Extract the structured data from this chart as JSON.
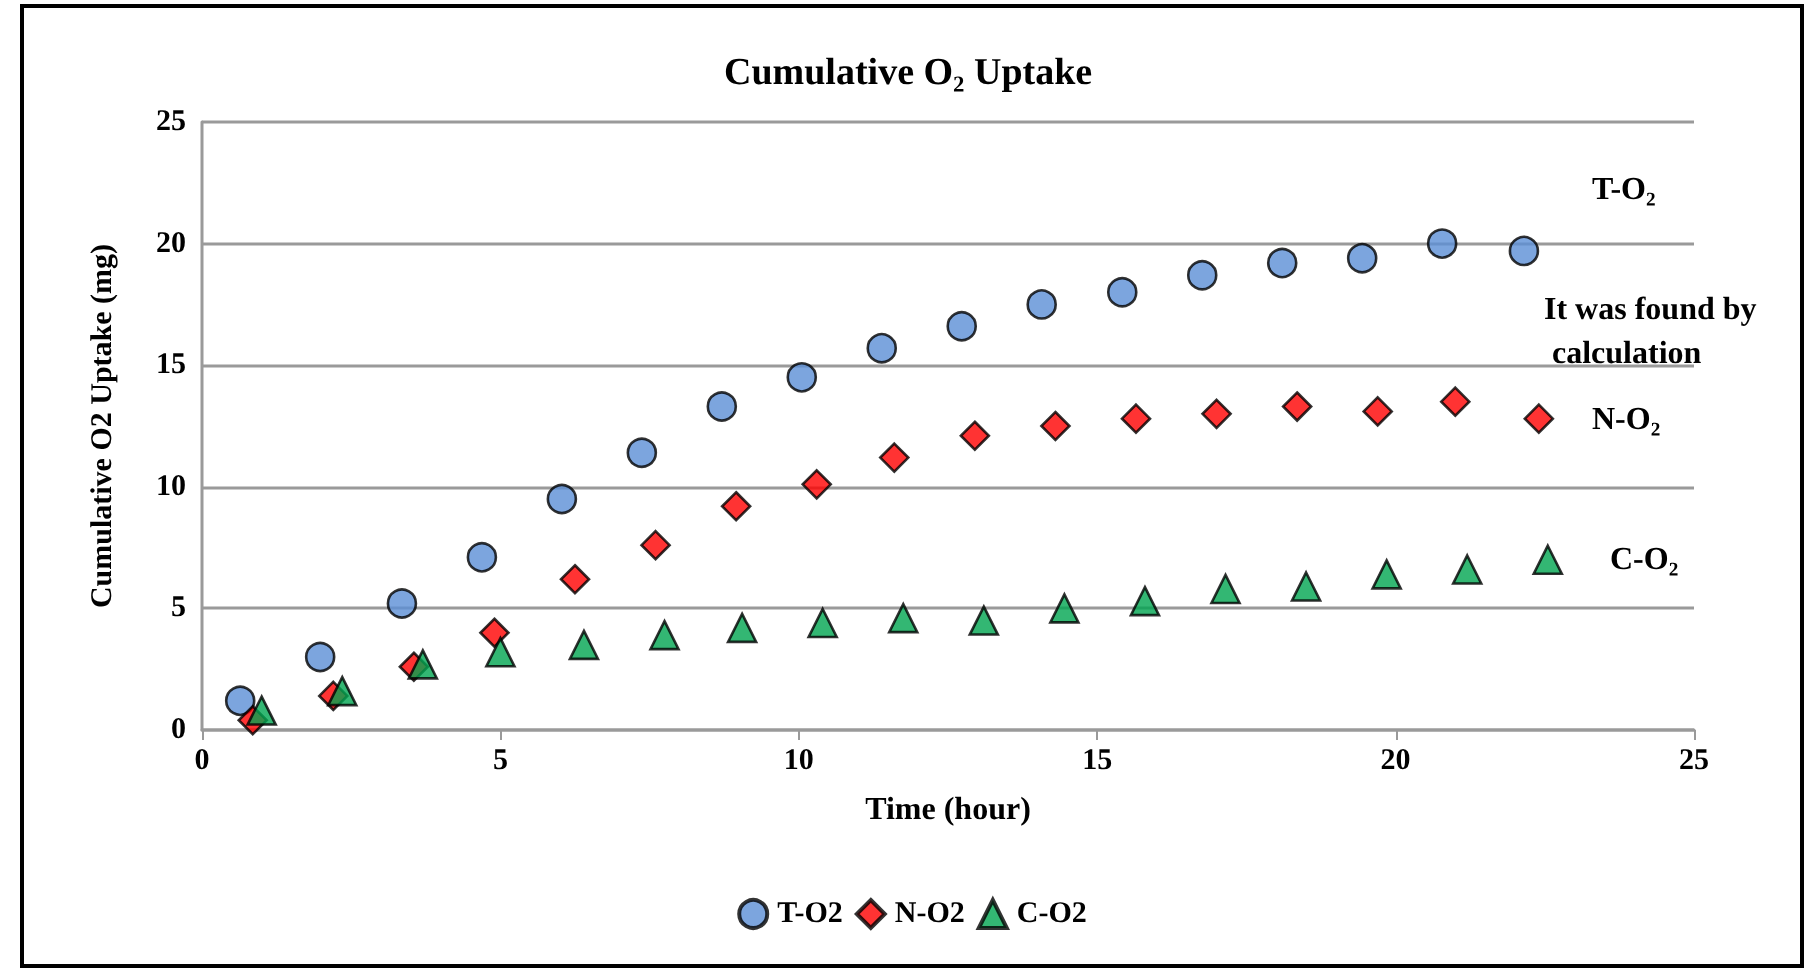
{
  "chart_data": {
    "type": "scatter",
    "title": "Cumulative O₂ Uptake",
    "xlabel": "Time (hour)",
    "ylabel": "Cumulative O2 Uptake (mg)",
    "xlim": [
      0,
      25
    ],
    "xticks": [
      0,
      5,
      10,
      15,
      20,
      25
    ],
    "ylim": [
      0,
      25
    ],
    "yticks": [
      0,
      5,
      10,
      15,
      20,
      25
    ],
    "grid": "y",
    "legend": "bottom",
    "series": [
      {
        "name": "T-O2",
        "color": "#5b8ed6",
        "marker": "circle",
        "x": [
          0.64,
          1.98,
          3.35,
          4.69,
          6.03,
          7.37,
          8.71,
          10.05,
          11.39,
          12.73,
          14.07,
          15.42,
          16.76,
          18.1,
          19.44,
          20.78,
          22.15
        ],
        "values": [
          1.2,
          3.0,
          5.2,
          7.1,
          9.5,
          11.4,
          13.3,
          14.5,
          15.7,
          16.6,
          17.5,
          18.0,
          18.7,
          19.2,
          19.4,
          20.0,
          19.7
        ]
      },
      {
        "name": "N-O2",
        "color": "#ff0000",
        "marker": "diamond",
        "x": [
          0.85,
          2.2,
          3.55,
          4.9,
          6.25,
          7.6,
          8.95,
          10.3,
          11.6,
          12.95,
          14.3,
          15.65,
          17.0,
          18.35,
          19.7,
          21.0,
          22.4
        ],
        "values": [
          0.4,
          1.4,
          2.6,
          4.0,
          6.2,
          7.6,
          9.2,
          10.1,
          11.2,
          12.1,
          12.5,
          12.8,
          13.0,
          13.3,
          13.1,
          13.5,
          12.8
        ]
      },
      {
        "name": "C-O2",
        "color": "#00a550",
        "marker": "triangle",
        "x": [
          1.0,
          2.35,
          3.7,
          5.0,
          6.4,
          7.75,
          9.05,
          10.4,
          11.75,
          13.1,
          14.45,
          15.8,
          17.15,
          18.5,
          19.85,
          21.2,
          22.55
        ],
        "values": [
          0.8,
          1.6,
          2.7,
          3.2,
          3.5,
          3.9,
          4.2,
          4.4,
          4.6,
          4.5,
          5.0,
          5.3,
          5.8,
          5.9,
          6.4,
          6.6,
          7.0
        ]
      }
    ],
    "annotations": [
      "T-O₂",
      "It was found by calculation",
      "N-O₂",
      "C-O₂"
    ]
  }
}
